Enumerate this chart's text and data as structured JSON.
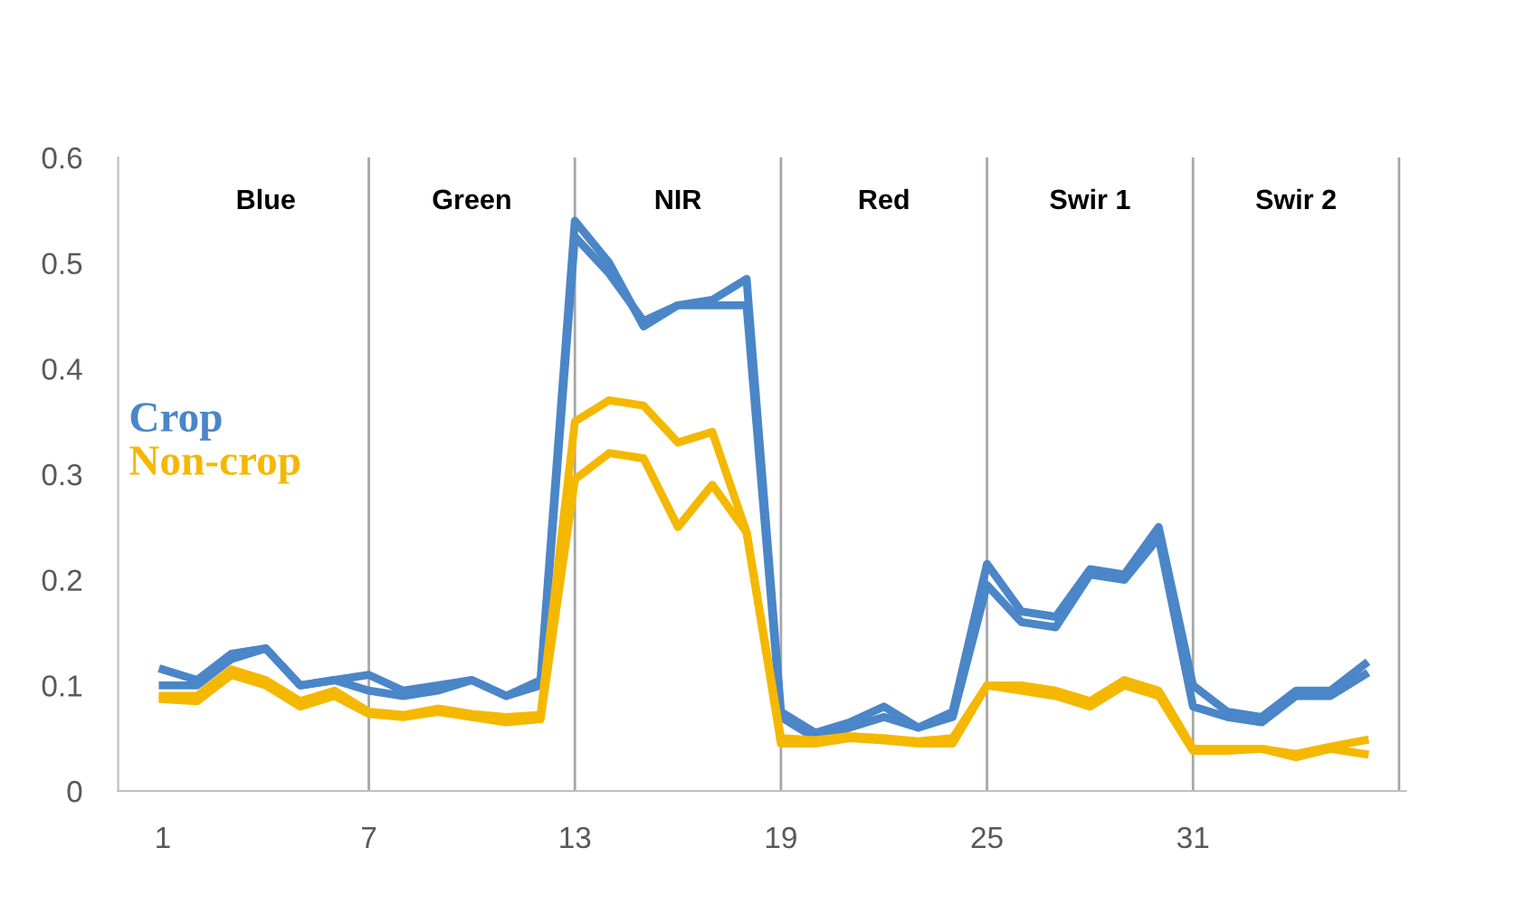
{
  "chart_data": {
    "type": "line",
    "x": [
      1,
      2,
      3,
      4,
      5,
      6,
      7,
      8,
      9,
      10,
      11,
      12,
      13,
      14,
      15,
      16,
      17,
      18,
      19,
      20,
      21,
      22,
      23,
      24,
      25,
      26,
      27,
      28,
      29,
      30,
      31,
      32,
      33,
      34,
      35,
      36
    ],
    "series": [
      {
        "name": "Crop",
        "color": "#4a86c8",
        "values": [
          0.115,
          0.105,
          0.13,
          0.135,
          0.1,
          0.105,
          0.11,
          0.095,
          0.1,
          0.105,
          0.09,
          0.105,
          0.54,
          0.5,
          0.44,
          0.46,
          0.465,
          0.485,
          0.075,
          0.055,
          0.065,
          0.08,
          0.06,
          0.075,
          0.215,
          0.17,
          0.165,
          0.21,
          0.205,
          0.25,
          0.1,
          0.075,
          0.07,
          0.095,
          0.095,
          0.12
        ]
      },
      {
        "color": "#4a86c8",
        "values": [
          0.1,
          0.1,
          0.125,
          0.135,
          0.1,
          0.105,
          0.095,
          0.09,
          0.095,
          0.105,
          0.09,
          0.1,
          0.525,
          0.49,
          0.445,
          0.46,
          0.46,
          0.46,
          0.07,
          0.05,
          0.06,
          0.07,
          0.06,
          0.07,
          0.195,
          0.16,
          0.155,
          0.205,
          0.2,
          0.24,
          0.08,
          0.07,
          0.065,
          0.09,
          0.09,
          0.11
        ]
      },
      {
        "name": "Non-crop",
        "color": "#f5b800",
        "values": [
          0.09,
          0.09,
          0.115,
          0.105,
          0.085,
          0.095,
          0.075,
          0.072,
          0.078,
          0.073,
          0.07,
          0.072,
          0.35,
          0.37,
          0.365,
          0.33,
          0.34,
          0.245,
          0.05,
          0.048,
          0.052,
          0.05,
          0.047,
          0.05,
          0.1,
          0.1,
          0.095,
          0.085,
          0.105,
          0.095,
          0.04,
          0.04,
          0.04,
          0.035,
          0.042,
          0.048
        ]
      },
      {
        "color": "#f5b800",
        "values": [
          0.087,
          0.085,
          0.11,
          0.1,
          0.08,
          0.09,
          0.073,
          0.07,
          0.075,
          0.07,
          0.065,
          0.068,
          0.295,
          0.32,
          0.315,
          0.25,
          0.29,
          0.245,
          0.045,
          0.045,
          0.05,
          0.048,
          0.045,
          0.045,
          0.1,
          0.095,
          0.09,
          0.08,
          0.1,
          0.09,
          0.038,
          0.038,
          0.04,
          0.032,
          0.04,
          0.035
        ]
      }
    ],
    "xlim": [
      -0.3,
      37.2
    ],
    "xticks": [
      1,
      7,
      13,
      19,
      25,
      31
    ],
    "ylim": [
      0,
      0.6
    ],
    "yticks": [
      0,
      0.1,
      0.2,
      0.3,
      0.4,
      0.5,
      0.6
    ],
    "grid": false,
    "legend": "left",
    "marker": "none",
    "line_style": "solid",
    "ref_lines": [
      {
        "axis": "x",
        "value": 7,
        "color": "#a6a6a6"
      },
      {
        "axis": "x",
        "value": 13,
        "color": "#a6a6a6"
      },
      {
        "axis": "x",
        "value": 19,
        "color": "#a6a6a6"
      },
      {
        "axis": "x",
        "value": 25,
        "color": "#a6a6a6"
      },
      {
        "axis": "x",
        "value": 31,
        "color": "#a6a6a6"
      },
      {
        "axis": "x",
        "value": 37,
        "color": "#a6a6a6"
      }
    ],
    "annotations": [
      "Blue",
      "Green",
      "NIR",
      "Red",
      "Swir 1",
      "Swir 2"
    ]
  }
}
